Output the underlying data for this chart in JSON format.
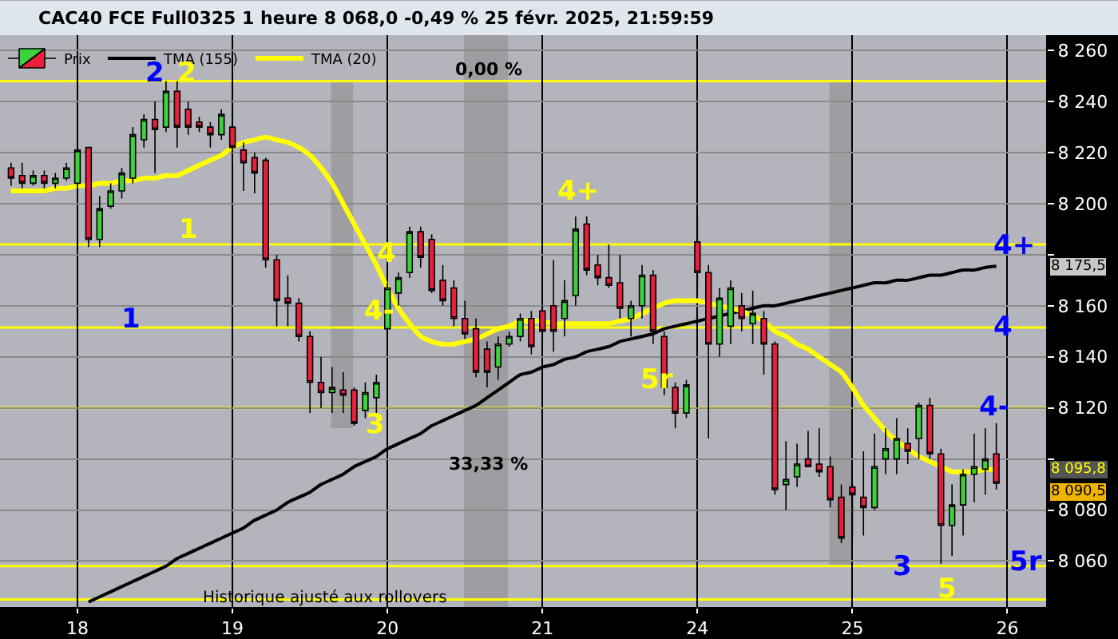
{
  "chart_data": {
    "type": "candlestick",
    "title": "CAC40 FCE Full0325 1 heure 8 068,0 -0,49 % 25 févr. 2025, 21:59:59",
    "categories": [
      null,
      null,
      null,
      null,
      null,
      null,
      "18",
      null,
      null,
      null,
      null,
      null,
      null,
      null,
      null,
      null,
      null,
      null,
      null,
      null,
      "19",
      null,
      null,
      null,
      null,
      null,
      null,
      null,
      null,
      null,
      null,
      null,
      null,
      null,
      "20",
      null,
      null,
      null,
      null,
      null,
      null,
      null,
      null,
      null,
      null,
      null,
      null,
      null,
      "21",
      null,
      null,
      null,
      null,
      null,
      null,
      null,
      null,
      null,
      null,
      null,
      null,
      null,
      "24",
      null,
      null,
      null,
      null,
      null,
      null,
      null,
      null,
      null,
      null,
      null,
      null,
      null,
      "25",
      null,
      null,
      null,
      null,
      null,
      null,
      null,
      null,
      null,
      null,
      null,
      null,
      null,
      "26",
      null,
      null,
      null
    ],
    "series": [
      {
        "name": "Prix",
        "colors": [
          "#e8203c",
          "#e8203c",
          "#3cd23c",
          "#e8203c",
          "#3cd23c",
          "#3cd23c",
          "#3cd23c",
          "#e8203c",
          "#3cd23c",
          "#3cd23c",
          "#3cd23c",
          "#3cd23c",
          "#3cd23c",
          "#e8203c",
          "#3cd23c",
          "#e8203c",
          "#e8203c",
          "#e8203c",
          "#e8203c",
          "#3cd23c",
          "#e8203c",
          "#e8203c",
          "#e8203c",
          "#e8203c",
          "#e8203c",
          "#e8203c",
          "#e8203c",
          "#e8203c",
          "#e8203c",
          "#3cd23c",
          "#e8203c",
          "#e8203c",
          "#3cd23c",
          "#3cd23c",
          "#3cd23c",
          "#3cd23c",
          "#3cd23c",
          "#e8203c",
          "#e8203c",
          "#e8203c",
          "#e8203c",
          "#e8203c",
          "#e8203c",
          "#e8203c",
          "#3cd23c",
          "#3cd23c",
          "#3cd23c",
          "#e8203c",
          "#e8203c",
          "#e8203c",
          "#3cd23c",
          "#3cd23c",
          "#e8203c",
          "#e8203c",
          "#e8203c",
          "#e8203c",
          "#3cd23c",
          "#3cd23c",
          "#e8203c",
          "#e8203c",
          "#e8203c",
          "#3cd23c",
          "#e8203c",
          "#e8203c",
          "#3cd23c",
          "#3cd23c",
          "#e8203c",
          "#3cd23c",
          "#e8203c",
          "#e8203c",
          "#3cd23c",
          "#3cd23c",
          "#e8203c",
          "#e8203c",
          "#e8203c",
          "#e8203c",
          "#e8203c",
          "#e8203c",
          "#3cd23c",
          "#3cd23c",
          "#3cd23c",
          "#e8203c",
          "#3cd23c",
          "#e8203c",
          "#e8203c",
          "#3cd23c",
          "#3cd23c",
          "#3cd23c",
          "#3cd23c",
          "#e8203c",
          null,
          null,
          null,
          null
        ],
        "ohlc": [
          [
            8214,
            8216,
            8207,
            8210
          ],
          [
            8211,
            8216,
            8206,
            8208
          ],
          [
            8208,
            8213,
            8207,
            8211
          ],
          [
            8211,
            8213,
            8206,
            8208
          ],
          [
            8208,
            8212,
            8206,
            8210
          ],
          [
            8210,
            8216,
            8209,
            8214
          ],
          [
            8208,
            8222,
            8204,
            8221
          ],
          [
            8222,
            8222,
            8183,
            8186
          ],
          [
            8186,
            8203,
            8183,
            8198
          ],
          [
            8199,
            8208,
            8198,
            8205
          ],
          [
            8205,
            8214,
            8202,
            8212
          ],
          [
            8210,
            8230,
            8208,
            8227
          ],
          [
            8225,
            8235,
            8222,
            8233
          ],
          [
            8233,
            8240,
            8212,
            8229
          ],
          [
            8230,
            8248,
            8228,
            8244
          ],
          [
            8244,
            8248,
            8222,
            8230
          ],
          [
            8237,
            8240,
            8227,
            8230
          ],
          [
            8232,
            8234,
            8228,
            8230
          ],
          [
            8230,
            8232,
            8222,
            8227
          ],
          [
            8227,
            8237,
            8225,
            8235
          ],
          [
            8230,
            8235,
            8220,
            8222
          ],
          [
            8221,
            8224,
            8205,
            8216
          ],
          [
            8218,
            8220,
            8204,
            8212
          ],
          [
            8217,
            8218,
            8175,
            8178
          ],
          [
            8178,
            8180,
            8152,
            8162
          ],
          [
            8163,
            8172,
            8152,
            8161
          ],
          [
            8161,
            8163,
            8146,
            8148
          ],
          [
            8148,
            8150,
            8118,
            8130
          ],
          [
            8130,
            8140,
            8120,
            8126
          ],
          [
            8126,
            8136,
            8118,
            8128
          ],
          [
            8127,
            8134,
            8118,
            8125
          ],
          [
            8127,
            8128,
            8113,
            8114
          ],
          [
            8119,
            8130,
            8116,
            8126
          ],
          [
            8124,
            8133,
            8118,
            8130
          ],
          [
            8151,
            8169,
            8142,
            8167
          ],
          [
            8165,
            8173,
            8160,
            8171
          ],
          [
            8173,
            8191,
            8171,
            8189
          ],
          [
            8189,
            8191,
            8175,
            8179
          ],
          [
            8186,
            8188,
            8165,
            8166
          ],
          [
            8170,
            8176,
            8160,
            8162
          ],
          [
            8167,
            8170,
            8152,
            8155
          ],
          [
            8155,
            8162,
            8147,
            8149
          ],
          [
            8151,
            8155,
            8132,
            8134
          ],
          [
            8143,
            8146,
            8128,
            8134
          ],
          [
            8136,
            8148,
            8131,
            8145
          ],
          [
            8145,
            8150,
            8144,
            8148
          ],
          [
            8148,
            8157,
            8146,
            8155
          ],
          [
            8155,
            8158,
            8141,
            8144
          ],
          [
            8158,
            8160,
            8146,
            8150
          ],
          [
            8160,
            8178,
            8142,
            8150
          ],
          [
            8155,
            8170,
            8148,
            8162
          ],
          [
            8164,
            8195,
            8160,
            8190
          ],
          [
            8192,
            8195,
            8172,
            8174
          ],
          [
            8176,
            8180,
            8168,
            8171
          ],
          [
            8171,
            8184,
            8167,
            8168
          ],
          [
            8169,
            8180,
            8155,
            8159
          ],
          [
            8155,
            8162,
            8148,
            8160
          ],
          [
            8160,
            8176,
            8155,
            8172
          ],
          [
            8172,
            8174,
            8145,
            8150
          ],
          [
            8148,
            8150,
            8125,
            8128
          ],
          [
            8128,
            8130,
            8112,
            8118
          ],
          [
            8118,
            8131,
            8116,
            8129
          ],
          [
            8185,
            8195,
            8166,
            8173
          ],
          [
            8173,
            8176,
            8108,
            8145
          ],
          [
            8145,
            8167,
            8140,
            8163
          ],
          [
            8152,
            8170,
            8145,
            8167
          ],
          [
            8160,
            8165,
            8150,
            8155
          ],
          [
            8153,
            8166,
            8145,
            8157
          ],
          [
            8155,
            8158,
            8133,
            8145
          ],
          [
            8145,
            8146,
            8086,
            8088
          ],
          [
            8090,
            8107,
            8080,
            8092
          ],
          [
            8093,
            8106,
            8089,
            8098
          ],
          [
            8100,
            8111,
            8097,
            8097
          ],
          [
            8098,
            8112,
            8093,
            8095
          ],
          [
            8097,
            8101,
            8081,
            8084
          ],
          [
            8085,
            8090,
            8067,
            8069
          ],
          [
            8089,
            8090,
            8069,
            8086
          ],
          [
            8085,
            8103,
            8070,
            8081
          ],
          [
            8081,
            8110,
            8080,
            8097
          ],
          [
            8100,
            8112,
            8094,
            8104
          ],
          [
            8100,
            8116,
            8094,
            8108
          ],
          [
            8106,
            8112,
            8098,
            8103
          ],
          [
            8108,
            8122,
            8100,
            8121
          ],
          [
            8121,
            8124,
            8100,
            8102
          ],
          [
            8102,
            8104,
            8059,
            8074
          ],
          [
            8074,
            8090,
            8062,
            8082
          ],
          [
            8082,
            8096,
            8070,
            8094
          ],
          [
            8094,
            8110,
            8083,
            8097
          ],
          [
            8096,
            8112,
            8086,
            8100
          ],
          [
            8102,
            8114,
            8088,
            8090.5
          ],
          null,
          null,
          null,
          null
        ]
      },
      {
        "name": "TMA (155)",
        "type": "line",
        "color": "#000000",
        "values": [
          null,
          null,
          null,
          null,
          null,
          null,
          null,
          8044,
          8046,
          8048,
          8050,
          8052,
          8054,
          8056,
          8058,
          8061,
          8063,
          8065,
          8067,
          8069,
          8071,
          8073,
          8076,
          8078,
          8080,
          8083,
          8085,
          8087,
          8090,
          8092,
          8094,
          8097,
          8099,
          8101,
          8104,
          8106,
          8108,
          8110,
          8113,
          8115,
          8117,
          8119,
          8121,
          8124,
          8127,
          8130,
          8133,
          8134,
          8136,
          8137,
          8139,
          8140,
          8142,
          8143,
          8144,
          8146,
          8147,
          8148,
          8149,
          8151,
          8152,
          8153,
          8154,
          8155,
          8156,
          8157,
          8158,
          8159,
          8160,
          8160,
          8161,
          8162,
          8163,
          8164,
          8165,
          8166,
          8167,
          8168,
          8169,
          8169,
          8170,
          8170,
          8171,
          8172,
          8172,
          8173,
          8174,
          8174,
          8175,
          8175.5,
          null,
          null,
          null,
          null
        ]
      },
      {
        "name": "TMA (20)",
        "type": "line",
        "color": "#ffff00",
        "values": [
          8205,
          8205,
          8205,
          8205,
          8206,
          8206,
          8207,
          8207,
          8208,
          8208,
          8209,
          8209,
          8210,
          8210,
          8211,
          8211,
          8213,
          8215,
          8217,
          8219,
          8222,
          8224,
          8225,
          8226,
          8225,
          8224,
          8222,
          8219,
          8214,
          8208,
          8200,
          8192,
          8184,
          8176,
          8167,
          8159,
          8153,
          8148,
          8146,
          8145,
          8145,
          8146,
          8147,
          8149,
          8151,
          8152,
          8154,
          8154,
          8154,
          8153,
          8153,
          8153,
          8153,
          8153,
          8153,
          8154,
          8155,
          8157,
          8159,
          8161,
          8162,
          8162,
          8162,
          8161,
          8160,
          8159,
          8158,
          8156,
          8154,
          8150,
          8148,
          8145,
          8143,
          8140,
          8137,
          8134,
          8128,
          8121,
          8116,
          8111,
          8107,
          8104,
          8101,
          8099,
          8097,
          8095,
          8095,
          8095,
          8096,
          8095.8,
          null,
          null,
          null,
          null
        ]
      }
    ],
    "ylim": [
      8042,
      8266
    ],
    "yticks": [
      {
        "value": 8060,
        "label": "8 060"
      },
      {
        "value": 8080,
        "label": "8 080"
      },
      {
        "value": 8100,
        "label": null
      },
      {
        "value": 8120,
        "label": "8 120"
      },
      {
        "value": 8140,
        "label": "8 140"
      },
      {
        "value": 8160,
        "label": "8 160"
      },
      {
        "value": 8180,
        "label": null
      },
      {
        "value": 8200,
        "label": "8 200"
      },
      {
        "value": 8220,
        "label": "8 220"
      },
      {
        "value": 8240,
        "label": "8 240"
      },
      {
        "value": 8260,
        "label": "8 260"
      }
    ],
    "grid": true,
    "legend": "top left",
    "ref_lines": [
      {
        "axis": "y",
        "value": 8248,
        "color": "#ffff00"
      },
      {
        "axis": "y",
        "value": 8184,
        "color": "#ffff00"
      },
      {
        "axis": "y",
        "value": 8151.5,
        "color": "#ffff00"
      },
      {
        "axis": "y",
        "value": 8120,
        "color": "#ffff00"
      },
      {
        "axis": "y",
        "value": 8058,
        "color": "#ffff00"
      },
      {
        "axis": "y",
        "value": 8045,
        "color": "#ffff00"
      }
    ],
    "annotations": [
      "2",
      "2",
      "1",
      "1",
      "4",
      "4-",
      "3",
      "4+",
      "5r",
      "4+",
      "4",
      "4-",
      "5r",
      "3",
      "5",
      "0,00 %",
      "33,33 %",
      {
        "text": "8 175,5",
        "y": 8175.5
      },
      "8 095,8",
      "8 090,5",
      "Historique ajusté aux rollovers"
    ]
  }
}
